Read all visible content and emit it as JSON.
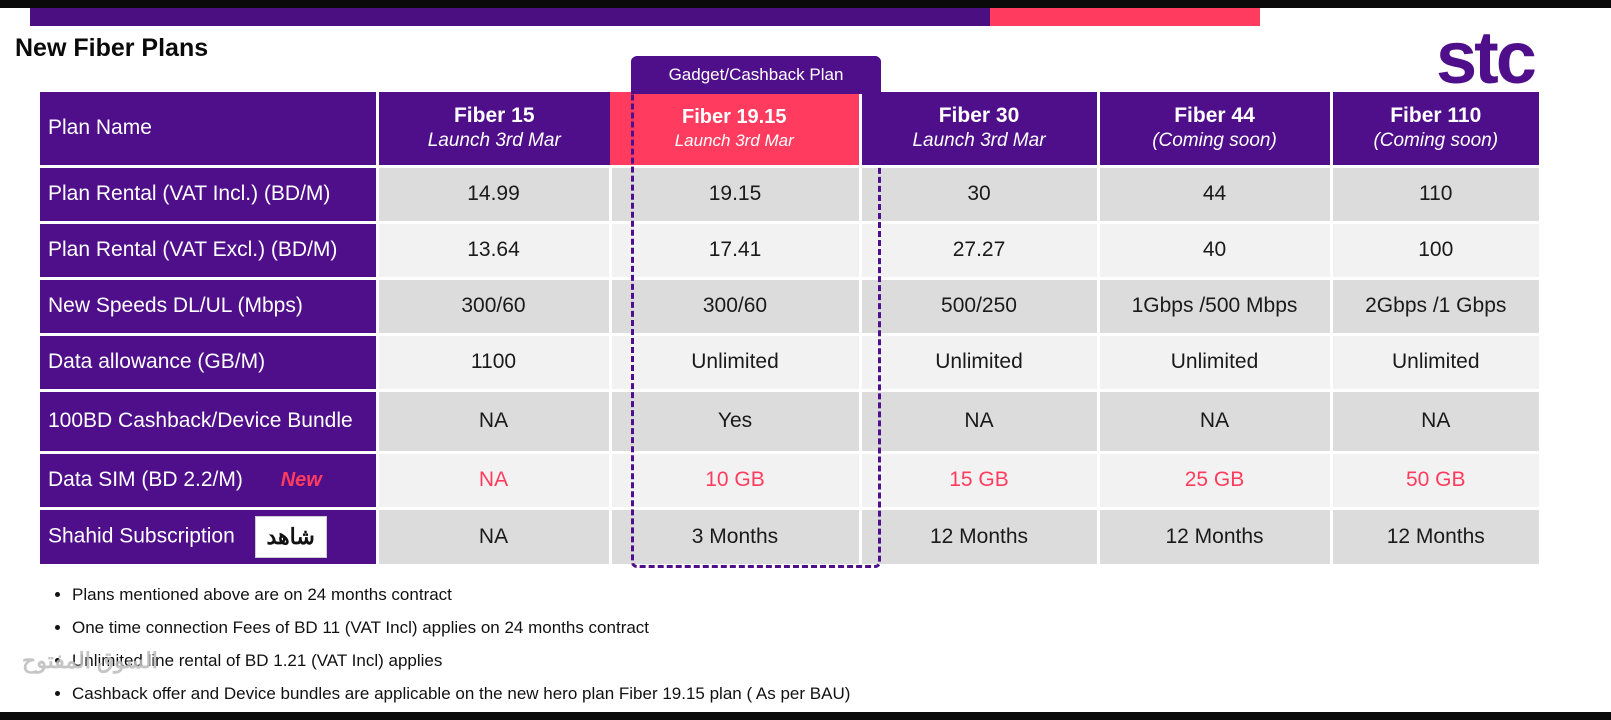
{
  "header": {
    "title": "New Fiber Plans",
    "logo_text": "stc",
    "colors": {
      "brand_purple": "#4f0f8a",
      "accent_pink": "#ff3c5f",
      "table_gray": "#dcdcdc",
      "table_light": "#f2f2f2"
    }
  },
  "highlight": {
    "label": "Gadget/Cashback Plan"
  },
  "table": {
    "header_label": "Plan Name",
    "plans": [
      {
        "name": "Fiber 15",
        "sub": "Launch 3rd Mar"
      },
      {
        "name": "Fiber 19.15",
        "sub": "Launch 3rd Mar"
      },
      {
        "name": "Fiber 30",
        "sub": "Launch 3rd Mar"
      },
      {
        "name": "Fiber 44",
        "sub": "(Coming soon)"
      },
      {
        "name": "Fiber 110",
        "sub": "(Coming soon)"
      }
    ],
    "rows": [
      {
        "label": "Plan Rental (VAT Incl.) (BD/M)",
        "values": [
          "14.99",
          "19.15",
          "30",
          "44",
          "110"
        ]
      },
      {
        "label": "Plan Rental (VAT Excl.) (BD/M)",
        "values": [
          "13.64",
          "17.41",
          "27.27",
          "40",
          "100"
        ]
      },
      {
        "label": "New Speeds DL/UL (Mbps)",
        "values": [
          "300/60",
          "300/60",
          "500/250",
          "1Gbps /500 Mbps",
          "2Gbps /1 Gbps"
        ]
      },
      {
        "label": "Data allowance (GB/M)",
        "values": [
          "1100",
          "Unlimited",
          "Unlimited",
          "Unlimited",
          "Unlimited"
        ]
      },
      {
        "label": "100BD Cashback/Device Bundle",
        "values": [
          "NA",
          "Yes",
          "NA",
          "NA",
          "NA"
        ]
      },
      {
        "label": "Data SIM (BD 2.2/M)",
        "tag": "New",
        "values": [
          "NA",
          "10 GB",
          "15 GB",
          "25 GB",
          "50 GB"
        ]
      },
      {
        "label": "Shahid Subscription",
        "logo": "شاهد",
        "values": [
          "NA",
          "3 Months",
          "12 Months",
          "12 Months",
          "12 Months"
        ]
      }
    ]
  },
  "notes": [
    "Plans mentioned above are on 24 months contract",
    "One time connection Fees of BD 11 (VAT Incl) applies on 24 months contract",
    "Unlimited line rental of BD 1.21 (VAT Incl) applies",
    "Cashback offer and Device bundles are applicable on the new hero plan Fiber 19.15 plan ( As per BAU)"
  ],
  "watermark": "السوق المفتوح"
}
